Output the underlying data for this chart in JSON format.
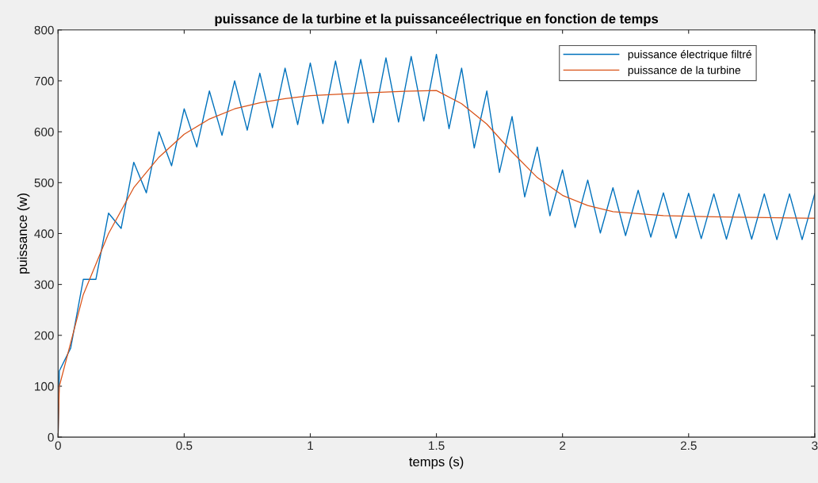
{
  "chart_data": {
    "type": "line",
    "title": "puissance de la turbine et la puissanceélectrique en fonction de temps",
    "xlabel": "temps (s)",
    "ylabel": "puissance (w)",
    "xlim": [
      0,
      3
    ],
    "xticks": [
      0,
      0.5,
      1,
      1.5,
      2,
      2.5,
      3
    ],
    "ylim": [
      0,
      800
    ],
    "yticks": [
      0,
      100,
      200,
      300,
      400,
      500,
      600,
      700,
      800
    ],
    "grid": false,
    "legend": "top right",
    "series": [
      {
        "name": "puissance électrique filtré",
        "color": "#0072bd",
        "x": [
          0,
          0.005,
          0.05,
          0.1,
          0.15,
          0.2,
          0.25,
          0.3,
          0.35,
          0.4,
          0.45,
          0.5,
          0.55,
          0.6,
          0.65,
          0.7,
          0.75,
          0.8,
          0.85,
          0.9,
          0.95,
          1.0,
          1.05,
          1.1,
          1.15,
          1.2,
          1.25,
          1.3,
          1.35,
          1.4,
          1.45,
          1.5,
          1.55,
          1.6,
          1.65,
          1.7,
          1.75,
          1.8,
          1.85,
          1.9,
          1.95,
          2.0,
          2.05,
          2.1,
          2.15,
          2.2,
          2.25,
          2.3,
          2.35,
          2.4,
          2.45,
          2.5,
          2.55,
          2.6,
          2.65,
          2.7,
          2.75,
          2.8,
          2.85,
          2.9,
          2.95,
          3.0
        ],
        "values": [
          0,
          130,
          175,
          310,
          310,
          440,
          410,
          540,
          480,
          600,
          533,
          645,
          570,
          680,
          593,
          700,
          603,
          715,
          608,
          725,
          614,
          735,
          616,
          739,
          617,
          742,
          618,
          745,
          619,
          748,
          621,
          752,
          606,
          725,
          568,
          680,
          520,
          630,
          472,
          570,
          435,
          525,
          412,
          505,
          401,
          490,
          396,
          485,
          393,
          480,
          391,
          479,
          390,
          478,
          389,
          478,
          389,
          478,
          388,
          478,
          388,
          478
        ]
      },
      {
        "name": "puissance de la turbine",
        "color": "#d95319",
        "x": [
          0,
          0.005,
          0.1,
          0.2,
          0.3,
          0.4,
          0.5,
          0.6,
          0.7,
          0.8,
          0.9,
          1.0,
          1.2,
          1.4,
          1.5,
          1.6,
          1.7,
          1.8,
          1.9,
          2.0,
          2.1,
          2.2,
          2.4,
          2.6,
          3.0
        ],
        "values": [
          0,
          100,
          280,
          400,
          490,
          550,
          595,
          625,
          645,
          657,
          665,
          671,
          676,
          680,
          681,
          655,
          615,
          560,
          510,
          475,
          455,
          443,
          435,
          433,
          430
        ]
      }
    ]
  }
}
